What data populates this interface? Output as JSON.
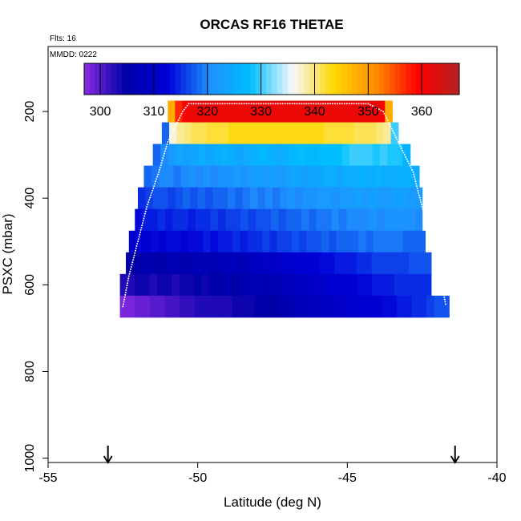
{
  "chart_data": {
    "type": "heatmap",
    "title": "ORCAS RF16 THETAE",
    "annotations": {
      "flights": "Flts: 16",
      "date": "MMDD: 0222"
    },
    "xlabel": "Latitude (deg N)",
    "ylabel": "PSXC (mbar)",
    "xlim": [
      -55,
      -40
    ],
    "ylim": [
      1010,
      50
    ],
    "y_reversed": true,
    "x_ticks": [
      -55,
      -50,
      -45,
      -40
    ],
    "y_ticks": [
      200,
      400,
      600,
      800,
      1000
    ],
    "colorbar": {
      "range": [
        297,
        367
      ],
      "ticks": [
        300,
        310,
        320,
        330,
        340,
        350,
        360
      ],
      "colors": [
        "#8b2be2",
        "#0000a8",
        "#0000d8",
        "#1e90ff",
        "#00bfff",
        "#f8f8ff",
        "#ffd700",
        "#ff8c00",
        "#ff0000",
        "#b22222"
      ],
      "placement": "top"
    },
    "rows": [
      {
        "p": 200,
        "lat_min": -51.0,
        "lat_max": -43.5,
        "values": [
          348,
          357,
          360,
          361,
          361,
          361,
          361,
          361,
          361,
          361,
          361,
          361,
          361,
          361,
          361,
          361,
          361,
          361,
          361,
          361,
          361,
          361,
          361,
          361,
          361,
          361,
          361,
          361,
          361,
          360,
          348
        ]
      },
      {
        "p": 250,
        "lat_min": -51.2,
        "lat_max": -43.3,
        "values": [
          318,
          337,
          339,
          340,
          341,
          341,
          342,
          342,
          342,
          343,
          343,
          343,
          343,
          343,
          343,
          343,
          343,
          343,
          343,
          343,
          343,
          343,
          342,
          342,
          342,
          342,
          341,
          341,
          341,
          340,
          339,
          330
        ]
      },
      {
        "p": 300,
        "lat_min": -51.5,
        "lat_max": -42.9,
        "values": [
          318,
          320,
          322,
          324,
          323,
          324,
          325,
          324,
          325,
          326,
          325,
          324,
          325,
          326,
          327,
          326,
          325,
          326,
          327,
          328,
          327,
          327,
          328,
          328,
          328,
          329,
          330,
          330,
          330,
          329,
          330,
          329,
          329,
          326
        ]
      },
      {
        "p": 350,
        "lat_min": -51.8,
        "lat_max": -42.6,
        "values": [
          318,
          319,
          320,
          320,
          319,
          320,
          321,
          320,
          321,
          320,
          321,
          321,
          322,
          321,
          322,
          323,
          322,
          323,
          322,
          323,
          324,
          323,
          324,
          324,
          325,
          325,
          324,
          325,
          325,
          326,
          325,
          326,
          325,
          325,
          326,
          326,
          325
        ]
      },
      {
        "p": 400,
        "lat_min": -52.0,
        "lat_max": -42.5,
        "values": [
          315,
          316,
          317,
          317,
          316,
          317,
          318,
          317,
          318,
          317,
          318,
          318,
          319,
          318,
          319,
          320,
          319,
          320,
          319,
          320,
          321,
          320,
          321,
          321,
          322,
          322,
          321,
          322,
          322,
          323,
          322,
          323,
          322,
          322,
          323,
          323,
          322,
          322
        ]
      },
      {
        "p": 450,
        "lat_min": -52.1,
        "lat_max": -42.5,
        "values": [
          313,
          314,
          314,
          315,
          314,
          315,
          315,
          314,
          315,
          315,
          316,
          315,
          316,
          316,
          317,
          316,
          317,
          317,
          318,
          317,
          318,
          318,
          319,
          318,
          319,
          319,
          320,
          319,
          320,
          320,
          320,
          321,
          320,
          321,
          321,
          321,
          321,
          320
        ]
      },
      {
        "p": 500,
        "lat_min": -52.3,
        "lat_max": -42.4,
        "values": [
          311,
          312,
          312,
          313,
          312,
          313,
          313,
          312,
          313,
          313,
          314,
          313,
          314,
          314,
          315,
          314,
          315,
          315,
          316,
          315,
          316,
          316,
          317,
          316,
          317,
          317,
          318,
          317,
          318,
          318,
          318,
          319,
          318,
          319,
          319,
          319,
          319,
          318,
          318,
          318
        ]
      },
      {
        "p": 550,
        "lat_min": -52.4,
        "lat_max": -42.2,
        "values": [
          305,
          305,
          306,
          306,
          305,
          306,
          307,
          306,
          306,
          307,
          307,
          306,
          307,
          308,
          308,
          307,
          308,
          309,
          310,
          309,
          310,
          311,
          311,
          312,
          312,
          312,
          313,
          313,
          314,
          314,
          314,
          315,
          315,
          316,
          316,
          316,
          316,
          316,
          317,
          317,
          317
        ]
      },
      {
        "p": 600,
        "lat_min": -52.6,
        "lat_max": -42.2,
        "values": [
          303,
          303,
          304,
          304,
          303,
          304,
          304,
          303,
          304,
          304,
          305,
          304,
          305,
          305,
          306,
          305,
          306,
          306,
          307,
          306,
          307,
          307,
          308,
          308,
          309,
          309,
          310,
          310,
          311,
          311,
          312,
          312,
          313,
          313,
          314,
          314,
          314,
          315,
          315,
          315,
          315,
          315
        ]
      },
      {
        "p": 650,
        "lat_min": -52.6,
        "lat_max": -41.6,
        "values": [
          298,
          298,
          299,
          299,
          300,
          300,
          301,
          301,
          302,
          302,
          303,
          303,
          303,
          303,
          303,
          304,
          304,
          304,
          305,
          305,
          305,
          306,
          306,
          307,
          307,
          308,
          308,
          309,
          309,
          310,
          310,
          311,
          311,
          312,
          312,
          313,
          313,
          314,
          314,
          315,
          315,
          316,
          317,
          317
        ]
      }
    ],
    "row_height_mbar": 50,
    "flight_track": [
      [
        -52.5,
        650
      ],
      [
        -52.3,
        580
      ],
      [
        -52.0,
        500
      ],
      [
        -51.7,
        420
      ],
      [
        -51.3,
        340
      ],
      [
        -51.0,
        270
      ],
      [
        -50.5,
        200
      ],
      [
        -50.3,
        182
      ],
      [
        -47.0,
        182
      ],
      [
        -44.3,
        182
      ],
      [
        -43.8,
        200
      ],
      [
        -43.3,
        270
      ],
      [
        -42.8,
        340
      ],
      [
        -42.5,
        420
      ],
      [
        -42.2,
        500
      ],
      [
        -41.9,
        580
      ],
      [
        -41.7,
        650
      ]
    ],
    "markers": [
      -53.0,
      -41.4
    ],
    "grid": false,
    "legend": "none"
  }
}
